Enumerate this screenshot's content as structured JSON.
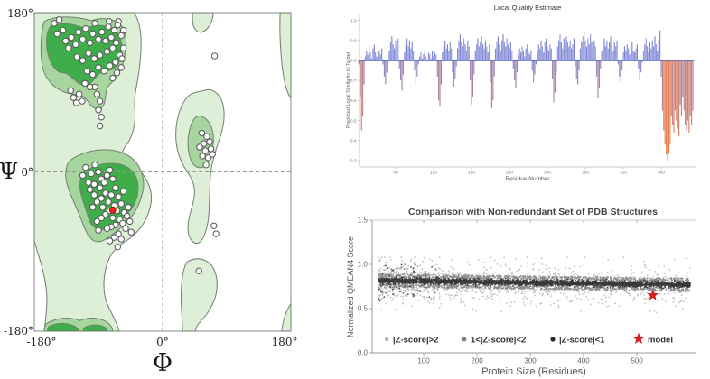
{
  "chart_data": [
    {
      "type": "scatter",
      "name": "ramachandran_plot",
      "xlabel": "Φ",
      "ylabel": "Ψ",
      "x_tick_labels": [
        "-180°",
        "0°",
        "180°"
      ],
      "y_tick_labels": [
        "180°",
        "0°",
        "-180°"
      ],
      "xlim": [
        -180,
        180
      ],
      "ylim": [
        -180,
        180
      ],
      "grid": "dashed crosshair at phi=0 and psi=0",
      "colors": {
        "region_light": "#ddefd7",
        "region_mid": "#a6d59e",
        "region_dark": "#3fae4a",
        "region_stroke": "#6f816f",
        "dot_fill": "#ffffff",
        "dot_stroke": "#555555",
        "model_fill": "#ee2222",
        "model_stroke": "#991111",
        "border": "#8a8a8a",
        "grid": "#999999"
      },
      "contours": {
        "light": [
          "M 0 0 L 140 0 C 150 12 151 30 149 50 C 147 76 139 92 141 108 C 143 128 137 142 127 152 C 119 160 130 164 143 174 C 158 186 166 200 164 214 C 161 232 148 248 129 258 C 112 266 104 276 100 290 C 96 306 97 322 105 334 C 111 344 117 352 119 360 L 14 360 C 16 344 19 330 17 314 C 15 298 10 284 5 272 L 0 258 Z",
          "M 238 88 C 252 84 264 94 266 110 C 268 124 262 138 257 150 C 251 164 248 174 247 186 C 246 200 246 212 245 226 C 244 240 240 252 234 258 C 227 264 218 259 216 248 C 214 238 219 226 223 214 C 227 202 224 192 218 184 C 209 174 201 162 199 146 C 197 128 202 110 212 98 C 220 89 230 90 238 88 Z",
          "M 214 282 C 227 275 245 278 252 290 C 258 300 258 314 252 326 C 246 338 237 346 230 352 C 227 355 227 357 226 360 L 208 360 C 208 348 206 336 206 324 C 206 308 207 292 214 282 Z",
          "M 222 0 L 251 0 C 251 9 246 17 238 21 C 230 25 223 19 222 10 Z",
          "M 345 0 L 360 0 L 360 97 C 353 89 349 72 347 55 C 345 37 344 17 345 0 Z",
          "M 360 329 C 353 337 349 348 347 360 L 360 360 Z"
        ],
        "mid": [
          "M 14 10 C 32 2 62 5 80 9 C 100 4 118 8 125 18 C 131 28 129 44 125 56 C 121 68 113 76 105 82 C 98 88 102 97 97 105 C 91 113 81 108 75 100 C 67 90 55 94 43 90 C 29 86 15 76 11 60 C 8 44 9 22 14 10 Z",
          "M 52 166 C 76 153 108 152 128 160 C 147 167 157 186 152 203 C 147 221 136 234 120 244 C 106 253 94 262 84 258 C 74 254 70 242 64 230 C 56 214 44 196 44 184 C 44 174 47 169 52 166 Z",
          "M 233 117 C 245 119 253 132 251 148 C 249 164 241 177 230 175 C 220 173 214 158 216 141 C 218 127 224 115 233 117 Z",
          "M 16 352 C 30 345 48 343 64 348 C 78 343 94 345 104 351 C 108 354 110 357 110 360 L 14 360 C 14 357 15 354 16 352 Z"
        ],
        "dark": [
          "M 22 16 C 40 9 58 14 72 18 C 90 11 112 15 119 26 C 125 36 124 50 117 59 C 110 68 98 64 90 70 C 82 76 78 84 68 82 C 58 80 50 68 40 68 C 29 68 20 54 18 42 C 16 30 18 22 22 16 Z",
          "M 70 180 C 90 169 118 167 133 176 C 147 184 149 201 141 215 C 133 229 118 237 104 243 C 92 248 80 244 76 232 C 72 220 64 206 64 196 C 64 187 66 182 70 180 Z",
          "M 20 355 C 32 350 46 350 58 355 C 61 357 62 358 62 360 L 18 360 Z",
          "M 70 356 C 80 352 92 352 100 356 L 102 360 L 68 360 Z"
        ]
      },
      "points": [
        [
          -152,
          168
        ],
        [
          -145,
          172
        ],
        [
          -148,
          156
        ],
        [
          -140,
          160
        ],
        [
          -136,
          148
        ],
        [
          -128,
          152
        ],
        [
          -132,
          140
        ],
        [
          -122,
          144
        ],
        [
          -118,
          158
        ],
        [
          -112,
          150
        ],
        [
          -108,
          162
        ],
        [
          -102,
          146
        ],
        [
          -98,
          156
        ],
        [
          -95,
          168
        ],
        [
          -90,
          150
        ],
        [
          -85,
          158
        ],
        [
          -80,
          148
        ],
        [
          -76,
          164
        ],
        [
          -72,
          152
        ],
        [
          -68,
          160
        ],
        [
          -65,
          146
        ],
        [
          -62,
          170
        ],
        [
          -58,
          154
        ],
        [
          -70,
          140
        ],
        [
          -78,
          136
        ],
        [
          -88,
          132
        ],
        [
          -96,
          128
        ],
        [
          -104,
          134
        ],
        [
          -112,
          126
        ],
        [
          -120,
          130
        ],
        [
          -60,
          132
        ],
        [
          -66,
          124
        ],
        [
          -74,
          120
        ],
        [
          -82,
          114
        ],
        [
          -90,
          118
        ],
        [
          -98,
          110
        ],
        [
          -106,
          114
        ],
        [
          -64,
          112
        ],
        [
          -70,
          106
        ],
        [
          -58,
          118
        ],
        [
          -55,
          140
        ],
        [
          -57,
          128
        ],
        [
          -63,
          166
        ],
        [
          -55,
          160
        ],
        [
          -75,
          170
        ],
        [
          -95,
          96
        ],
        [
          -92,
          88
        ],
        [
          -88,
          80
        ],
        [
          -90,
          70
        ],
        [
          -86,
          62
        ],
        [
          -88,
          52
        ],
        [
          -129,
          92
        ],
        [
          -125,
          84
        ],
        [
          -121,
          78
        ],
        [
          -117,
          88
        ],
        [
          -113,
          80
        ],
        [
          -109,
          100
        ],
        [
          -102,
          96
        ],
        [
          -108,
          5
        ],
        [
          -100,
          -2
        ],
        [
          -95,
          8
        ],
        [
          -90,
          0
        ],
        [
          -86,
          -8
        ],
        [
          -96,
          -14
        ],
        [
          -102,
          -20
        ],
        [
          -88,
          -18
        ],
        [
          -82,
          -12
        ],
        [
          -78,
          -4
        ],
        [
          -74,
          2
        ],
        [
          -70,
          -8
        ],
        [
          -80,
          -24
        ],
        [
          -86,
          -30
        ],
        [
          -92,
          -34
        ],
        [
          -98,
          -40
        ],
        [
          -76,
          -34
        ],
        [
          -72,
          -26
        ],
        [
          -66,
          -18
        ],
        [
          -62,
          -28
        ],
        [
          -68,
          -38
        ],
        [
          -74,
          -44
        ],
        [
          -80,
          -48
        ],
        [
          -86,
          -52
        ],
        [
          -92,
          -56
        ],
        [
          -70,
          -52
        ],
        [
          -64,
          -44
        ],
        [
          -58,
          -36
        ],
        [
          -54,
          -46
        ],
        [
          -60,
          -54
        ],
        [
          -66,
          -60
        ],
        [
          -72,
          -62
        ],
        [
          -78,
          -64
        ],
        [
          -56,
          -58
        ],
        [
          -50,
          -50
        ],
        [
          -62,
          -70
        ],
        [
          -68,
          -74
        ],
        [
          -74,
          -78
        ],
        [
          -52,
          -64
        ],
        [
          -58,
          -76
        ],
        [
          -48,
          -40
        ],
        [
          -46,
          -56
        ],
        [
          -44,
          -68
        ],
        [
          -84,
          -40
        ],
        [
          -96,
          -26
        ],
        [
          -104,
          -12
        ],
        [
          -112,
          -4
        ],
        [
          -55,
          -22
        ],
        [
          -90,
          -66
        ],
        [
          -63,
          -85
        ],
        [
          55,
          44
        ],
        [
          62,
          40
        ],
        [
          58,
          32
        ],
        [
          66,
          34
        ],
        [
          52,
          28
        ],
        [
          60,
          24
        ],
        [
          68,
          26
        ],
        [
          56,
          18
        ],
        [
          64,
          16
        ],
        [
          70,
          20
        ],
        [
          61,
          8
        ],
        [
          73,
          131
        ],
        [
          72,
          -61
        ],
        [
          75,
          -70
        ],
        [
          51,
          -112
        ]
      ],
      "model_point": [
        -70,
        -43
      ]
    },
    {
      "type": "bar",
      "name": "local_quality_estimate",
      "title": "Local Quality Estimate",
      "xlabel": "Residue Number",
      "ylabel": "Predicted Local Similarity to Target",
      "ylim": [
        0.27,
        1.03
      ],
      "baseline": 0.8,
      "yticks": [
        "1.0",
        "0.9",
        "0.8",
        "0.7",
        "0.6",
        "0.5",
        "0.4",
        "0.3"
      ],
      "ytick_values": [
        1.0,
        0.9,
        0.8,
        0.7,
        0.6,
        0.5,
        0.4,
        0.3
      ],
      "xticks": [
        "60",
        "120",
        "180",
        "240",
        "300",
        "360",
        "420",
        "480"
      ],
      "xtick_values": [
        60,
        120,
        180,
        240,
        300,
        360,
        420,
        480
      ],
      "colors": {
        "bar_high_a": "#7780d2",
        "bar_high_b": "#8a91da",
        "bar_low_end": "#f2703a",
        "baseline": "#5161c0",
        "axis": "#bbbbbb",
        "tick_text": "#777777",
        "title_text": "#333333"
      },
      "bars": {
        "start_residue": 2,
        "residue_step": 2,
        "values": [
          0.78,
          0.62,
          0.45,
          0.52,
          0.68,
          0.82,
          0.85,
          0.83,
          0.87,
          0.84,
          0.81,
          0.86,
          0.88,
          0.84,
          0.82,
          0.87,
          0.85,
          0.83,
          0.86,
          0.78,
          0.72,
          0.68,
          0.74,
          0.79,
          0.85,
          0.89,
          0.92,
          0.88,
          0.86,
          0.9,
          0.87,
          0.91,
          0.76,
          0.7,
          0.65,
          0.73,
          0.84,
          0.88,
          0.91,
          0.87,
          0.9,
          0.86,
          0.89,
          0.85,
          0.75,
          0.68,
          0.72,
          0.78,
          0.82,
          0.84,
          0.81,
          0.83,
          0.85,
          0.82,
          0.8,
          0.84,
          0.83,
          0.81,
          0.85,
          0.82,
          0.84,
          0.83,
          0.72,
          0.6,
          0.57,
          0.68,
          0.84,
          0.87,
          0.9,
          0.86,
          0.88,
          0.85,
          0.89,
          0.86,
          0.74,
          0.67,
          0.71,
          0.77,
          0.86,
          0.9,
          0.93,
          0.89,
          0.87,
          0.91,
          0.88,
          0.85,
          0.9,
          0.87,
          0.7,
          0.58,
          0.62,
          0.73,
          0.85,
          0.88,
          0.91,
          0.87,
          0.89,
          0.92,
          0.88,
          0.86,
          0.9,
          0.87,
          0.84,
          0.88,
          0.69,
          0.56,
          0.6,
          0.72,
          0.86,
          0.89,
          0.92,
          0.88,
          0.85,
          0.9,
          0.93,
          0.89,
          0.87,
          0.91,
          0.88,
          0.86,
          0.89,
          0.85,
          0.76,
          0.7,
          0.66,
          0.74,
          0.83,
          0.86,
          0.84,
          0.87,
          0.85,
          0.82,
          0.86,
          0.88,
          0.84,
          0.83,
          0.85,
          0.75,
          0.69,
          0.73,
          0.78,
          0.85,
          0.88,
          0.86,
          0.9,
          0.87,
          0.84,
          0.89,
          0.91,
          0.87,
          0.85,
          0.88,
          0.86,
          0.71,
          0.59,
          0.64,
          0.74,
          0.87,
          0.9,
          0.93,
          0.89,
          0.86,
          0.91,
          0.88,
          0.92,
          0.89,
          0.87,
          0.9,
          0.86,
          0.88,
          0.91,
          0.77,
          0.71,
          0.68,
          0.75,
          0.86,
          0.89,
          0.92,
          0.95,
          0.9,
          0.87,
          0.91,
          0.88,
          0.93,
          0.89,
          0.86,
          0.9,
          0.87,
          0.72,
          0.61,
          0.66,
          0.76,
          0.85,
          0.88,
          0.91,
          0.87,
          0.9,
          0.86,
          0.89,
          0.92,
          0.88,
          0.85,
          0.89,
          0.87,
          0.9,
          0.78,
          0.72,
          0.69,
          0.75,
          0.84,
          0.87,
          0.85,
          0.88,
          0.86,
          0.83,
          0.87,
          0.89,
          0.85,
          0.84,
          0.86,
          0.88,
          0.76,
          0.7,
          0.74,
          0.79,
          0.85,
          0.88,
          0.91,
          0.87,
          0.84,
          0.89,
          0.86,
          0.9,
          0.87,
          0.92,
          0.88,
          0.85,
          0.9,
          0.95,
          0.72,
          0.55,
          0.45,
          0.38,
          0.33,
          0.3,
          0.34,
          0.38,
          0.52,
          0.48,
          0.44,
          0.55,
          0.5,
          0.46,
          0.42,
          0.58,
          0.52,
          0.62,
          0.55,
          0.48,
          0.45,
          0.5,
          0.44,
          0.52,
          0.48,
          0.55
        ]
      }
    },
    {
      "type": "scatter",
      "name": "qmean_comparison",
      "title": "Comparison with Non-redundant Set of PDB Structures",
      "xlabel": "Protein Size (Residues)",
      "ylabel": "Normalized QMEAN4 Score",
      "yticks": [
        "0.0",
        "0.5",
        "1.0",
        "1.5"
      ],
      "ytick_values": [
        0.0,
        0.5,
        1.0,
        1.5
      ],
      "xticks": [
        "100",
        "200",
        "300",
        "400",
        "500"
      ],
      "xtick_values": [
        100,
        200,
        300,
        400,
        500
      ],
      "xlim": [
        0,
        610
      ],
      "ylim": [
        0.0,
        1.5
      ],
      "band": {
        "center_at_size_0": 0.818,
        "slope_per_residue": -8e-05,
        "sd_inner": 0.03,
        "sd_outer_max": 0.27,
        "size_min": 15,
        "size_max": 600
      },
      "point_counts": {
        "dark": 3000,
        "medium": 1500,
        "light": 650,
        "left_outliers": 90
      },
      "seed": 42,
      "legend": [
        {
          "label": "|Z-score|>2",
          "color": "#b5b5b5"
        },
        {
          "label": "1<|Z-score|<2",
          "color": "#808080"
        },
        {
          "label": "|Z-score|<1",
          "color": "#2b2b2b"
        },
        {
          "label": "model",
          "color": "#e01b1b"
        }
      ],
      "model": {
        "size": 530,
        "score": 0.65
      },
      "colors": {
        "dark": "#383838",
        "medium": "#8a8a8a",
        "light": "#bcbcbc",
        "star": "#e01b1b",
        "axis": "#999999",
        "tick_text": "#666666",
        "title_text": "#444444",
        "label_text": "#555555",
        "legend_text": "#333333"
      }
    }
  ]
}
